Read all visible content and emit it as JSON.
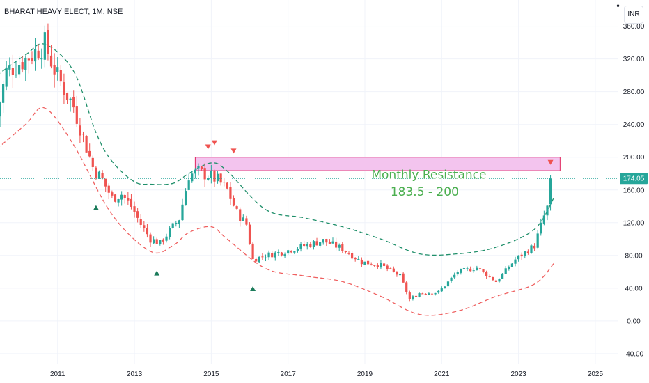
{
  "header": {
    "title": "BHARAT HEAVY ELECT, 1M, NSE",
    "currency": "INR",
    "menu_glyph": "•"
  },
  "colors": {
    "up": "#26a69a",
    "down": "#ef5350",
    "upper_band": "#1f8f6a",
    "lower_band": "#ef6060",
    "zone_fill": "#f3c4ee",
    "zone_border": "#e0245e",
    "annotation": "#4caf50",
    "price_line": "#26a69a",
    "grid": "#f0f3fa"
  },
  "chart_data": {
    "type": "candlestick",
    "symbol": "BHARAT HEAVY ELECT",
    "interval": "1M",
    "exchange": "NSE",
    "currency": "INR",
    "x_ticks": [
      "2011",
      "2013",
      "2015",
      "2017",
      "2019",
      "2021",
      "2023",
      "2025"
    ],
    "y_ticks": [
      "-40.00",
      "0.00",
      "40.00",
      "80.00",
      "120.00",
      "160.00",
      "200.00",
      "240.00",
      "280.00",
      "320.00",
      "360.00"
    ],
    "ylim": [
      -52,
      392
    ],
    "last_price": 174.05,
    "last_price_label": "174.05",
    "close_path": [
      [
        "2009-06",
        250
      ],
      [
        "2009-09",
        305
      ],
      [
        "2010-03",
        320
      ],
      [
        "2010-09",
        338
      ],
      [
        "2011-01",
        298
      ],
      [
        "2011-06",
        262
      ],
      [
        "2011-12",
        188
      ],
      [
        "2012-03",
        172
      ],
      [
        "2012-06",
        150
      ],
      [
        "2012-09",
        155
      ],
      [
        "2012-12",
        140
      ],
      [
        "2013-03",
        118
      ],
      [
        "2013-06",
        100
      ],
      [
        "2013-09",
        95
      ],
      [
        "2014-03",
        125
      ],
      [
        "2014-06",
        178
      ],
      [
        "2014-09",
        182
      ],
      [
        "2014-12",
        178
      ],
      [
        "2015-03",
        172
      ],
      [
        "2015-06",
        160
      ],
      [
        "2015-09",
        132
      ],
      [
        "2015-12",
        118
      ],
      [
        "2016-02",
        75
      ],
      [
        "2016-06",
        80
      ],
      [
        "2016-12",
        85
      ],
      [
        "2017-06",
        92
      ],
      [
        "2017-12",
        98
      ],
      [
        "2018-06",
        88
      ],
      [
        "2018-12",
        72
      ],
      [
        "2019-06",
        68
      ],
      [
        "2019-12",
        55
      ],
      [
        "2020-03",
        26
      ],
      [
        "2020-06",
        34
      ],
      [
        "2020-12",
        35
      ],
      [
        "2021-06",
        60
      ],
      [
        "2021-12",
        65
      ],
      [
        "2022-06",
        48
      ],
      [
        "2022-12",
        75
      ],
      [
        "2023-06",
        92
      ],
      [
        "2023-09",
        128
      ],
      [
        "2023-10",
        138
      ],
      [
        "2023-11",
        174
      ]
    ],
    "upper_band": [
      [
        "2009-06",
        300
      ],
      [
        "2010-03",
        325
      ],
      [
        "2010-09",
        338
      ],
      [
        "2011-06",
        305
      ],
      [
        "2012-01",
        230
      ],
      [
        "2012-06",
        195
      ],
      [
        "2013-01",
        170
      ],
      [
        "2013-06",
        167
      ],
      [
        "2014-01",
        168
      ],
      [
        "2014-06",
        180
      ],
      [
        "2015-01",
        193
      ],
      [
        "2015-06",
        183
      ],
      [
        "2016-06",
        136
      ],
      [
        "2017-06",
        126
      ],
      [
        "2018-06",
        115
      ],
      [
        "2019-06",
        100
      ],
      [
        "2020-06",
        82
      ],
      [
        "2021-06",
        82
      ],
      [
        "2022-06",
        90
      ],
      [
        "2023-06",
        112
      ],
      [
        "2023-12",
        150
      ]
    ],
    "lower_band": [
      [
        "2009-06",
        210
      ],
      [
        "2010-03",
        240
      ],
      [
        "2010-09",
        260
      ],
      [
        "2011-06",
        215
      ],
      [
        "2012-06",
        130
      ],
      [
        "2013-06",
        85
      ],
      [
        "2014-01",
        92
      ],
      [
        "2014-06",
        108
      ],
      [
        "2015-01",
        115
      ],
      [
        "2015-06",
        100
      ],
      [
        "2016-06",
        64
      ],
      [
        "2017-06",
        55
      ],
      [
        "2018-06",
        48
      ],
      [
        "2019-06",
        30
      ],
      [
        "2020-06",
        8
      ],
      [
        "2021-06",
        12
      ],
      [
        "2022-06",
        30
      ],
      [
        "2023-06",
        45
      ],
      [
        "2023-12",
        70
      ]
    ],
    "resistance_zone": {
      "label": "Monthly Resistance",
      "range_label": "183.5 - 200",
      "low": 183.5,
      "high": 200,
      "start": "2014-08",
      "end": "2024-02"
    },
    "markers": [
      {
        "type": "down",
        "date": "2014-12",
        "value": 213
      },
      {
        "type": "down",
        "date": "2015-02",
        "value": 218
      },
      {
        "type": "down",
        "date": "2015-08",
        "value": 208
      },
      {
        "type": "down",
        "date": "2023-11",
        "value": 194
      },
      {
        "type": "up",
        "date": "2012-01",
        "value": 138
      },
      {
        "type": "up",
        "date": "2013-08",
        "value": 58
      },
      {
        "type": "up",
        "date": "2016-02",
        "value": 39
      }
    ]
  }
}
